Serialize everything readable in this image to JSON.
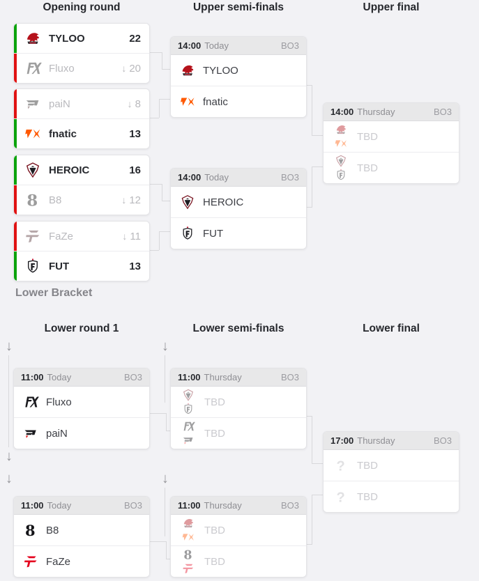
{
  "colors": {
    "win": "#0ba30b",
    "loss": "#e01212"
  },
  "icons": {
    "drop_arrow": "↓"
  },
  "headings": {
    "opening": "Opening round",
    "upper_semis": "Upper semi-finals",
    "upper_final": "Upper final",
    "lower_bracket": "Lower Bracket",
    "lower_round1": "Lower round 1",
    "lower_semis": "Lower semi-finals",
    "lower_final": "Lower final"
  },
  "opening_matches": [
    {
      "team1": {
        "name": "TYLOO",
        "logo": "tyloo",
        "score": "22",
        "result": "win"
      },
      "team2": {
        "name": "Fluxo",
        "logo": "fluxo",
        "score": "20",
        "result": "loss",
        "drop": "↓"
      }
    },
    {
      "team1": {
        "name": "paiN",
        "logo": "pain",
        "score": "8",
        "result": "loss",
        "drop": "↓"
      },
      "team2": {
        "name": "fnatic",
        "logo": "fnatic",
        "score": "13",
        "result": "win"
      }
    },
    {
      "team1": {
        "name": "HEROIC",
        "logo": "heroic",
        "score": "16",
        "result": "win"
      },
      "team2": {
        "name": "B8",
        "logo": "b8",
        "score": "12",
        "result": "loss",
        "drop": "↓"
      }
    },
    {
      "team1": {
        "name": "FaZe",
        "logo": "faze",
        "score": "11",
        "result": "loss",
        "drop": "↓"
      },
      "team2": {
        "name": "FUT",
        "logo": "fut",
        "score": "13",
        "result": "win"
      }
    }
  ],
  "upper_semis": [
    {
      "time": "14:00",
      "day": "Today",
      "format": "BO3",
      "team1": {
        "name": "TYLOO",
        "logo": "tyloo"
      },
      "team2": {
        "name": "fnatic",
        "logo": "fnatic"
      }
    },
    {
      "time": "14:00",
      "day": "Today",
      "format": "BO3",
      "team1": {
        "name": "HEROIC",
        "logo": "heroic"
      },
      "team2": {
        "name": "FUT",
        "logo": "fut"
      }
    }
  ],
  "upper_final": {
    "time": "14:00",
    "day": "Thursday",
    "format": "BO3",
    "team1": {
      "name": "TBD",
      "logos": [
        "tyloo",
        "fnatic"
      ]
    },
    "team2": {
      "name": "TBD",
      "logos": [
        "heroic",
        "fut"
      ]
    }
  },
  "lower_round1": [
    {
      "time": "11:00",
      "day": "Today",
      "format": "BO3",
      "team1": {
        "name": "Fluxo",
        "logo": "fluxo"
      },
      "team2": {
        "name": "paiN",
        "logo": "pain"
      }
    },
    {
      "time": "11:00",
      "day": "Today",
      "format": "BO3",
      "team1": {
        "name": "B8",
        "logo": "b8"
      },
      "team2": {
        "name": "FaZe",
        "logo": "faze"
      }
    }
  ],
  "lower_semis": [
    {
      "time": "11:00",
      "day": "Thursday",
      "format": "BO3",
      "team1": {
        "name": "TBD",
        "logos": [
          "heroic",
          "fut"
        ]
      },
      "team2": {
        "name": "TBD",
        "logos": [
          "fluxo",
          "pain"
        ]
      }
    },
    {
      "time": "11:00",
      "day": "Thursday",
      "format": "BO3",
      "team1": {
        "name": "TBD",
        "logos": [
          "tyloo",
          "fnatic"
        ]
      },
      "team2": {
        "name": "TBD",
        "logos": [
          "b8",
          "faze"
        ]
      }
    }
  ],
  "lower_final": {
    "time": "17:00",
    "day": "Thursday",
    "format": "BO3",
    "team1": {
      "name": "TBD",
      "logos": [
        "tbd"
      ]
    },
    "team2": {
      "name": "TBD",
      "logos": [
        "tbd"
      ]
    }
  }
}
